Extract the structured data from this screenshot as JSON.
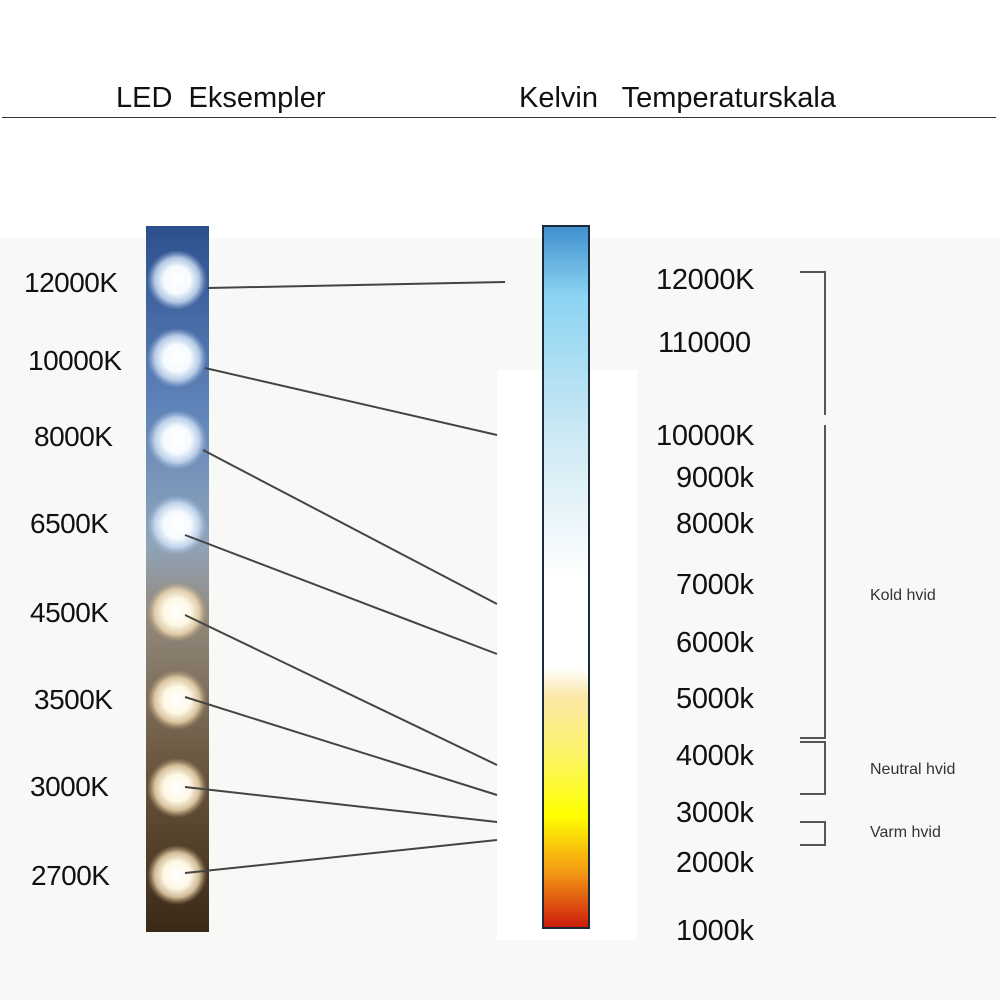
{
  "header": {
    "left": "LED  Eksempler",
    "right": "Kelvin   Temperaturskala"
  },
  "led_examples": [
    "12000K",
    "10000K",
    "8000K",
    "6500K",
    "4500K",
    "3500K",
    "3000K",
    "2700K"
  ],
  "scale_labels": [
    "12000K",
    "110000",
    "10000K",
    "9000k",
    "8000k",
    "7000k",
    "6000k",
    "5000k",
    "4000k",
    "3000k",
    "2000k",
    "1000k"
  ],
  "zones": {
    "cold": "Kold hvid",
    "neutral": "Neutral hvid",
    "warm": "Varm hvid"
  },
  "colors": {
    "scale_top": "#3f8fcf",
    "scale_white": "#ffffff",
    "scale_yellow": "#ffff00",
    "scale_orange": "#f49a14",
    "scale_bottom": "#cc1a0c",
    "strip_cold": "#4f72a8",
    "strip_warm": "#3e2c19"
  }
}
